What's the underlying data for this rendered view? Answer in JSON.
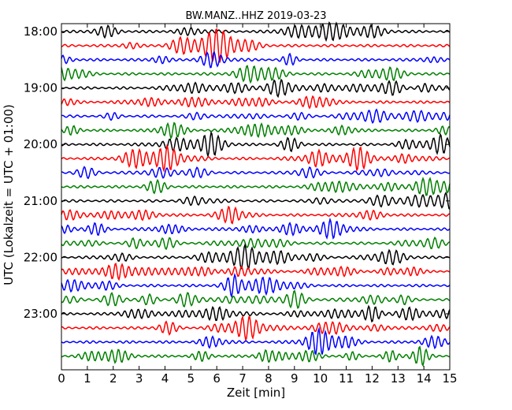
{
  "chart_data": {
    "type": "line",
    "title": "BW.MANZ..HHZ 2019-03-23",
    "xlabel": "Zeit  [min]",
    "ylabel": "UTC (Lokalzeit = UTC + 01:00)",
    "xlim": [
      0,
      15
    ],
    "x_ticks": [
      "0",
      "1",
      "2",
      "3",
      "4",
      "5",
      "6",
      "7",
      "8",
      "9",
      "10",
      "11",
      "12",
      "13",
      "14",
      "15"
    ],
    "y_tick_labels": [
      "18:00",
      "19:00",
      "20:00",
      "21:00",
      "22:00",
      "23:00"
    ],
    "traces_per_hour": 4,
    "trace_start": "18:00",
    "trace_end": "23:45",
    "trace_duration_min": 15,
    "colors": [
      "#000000",
      "#ff0000",
      "#0000ff",
      "#008000"
    ],
    "grid": false,
    "legend": "none"
  }
}
